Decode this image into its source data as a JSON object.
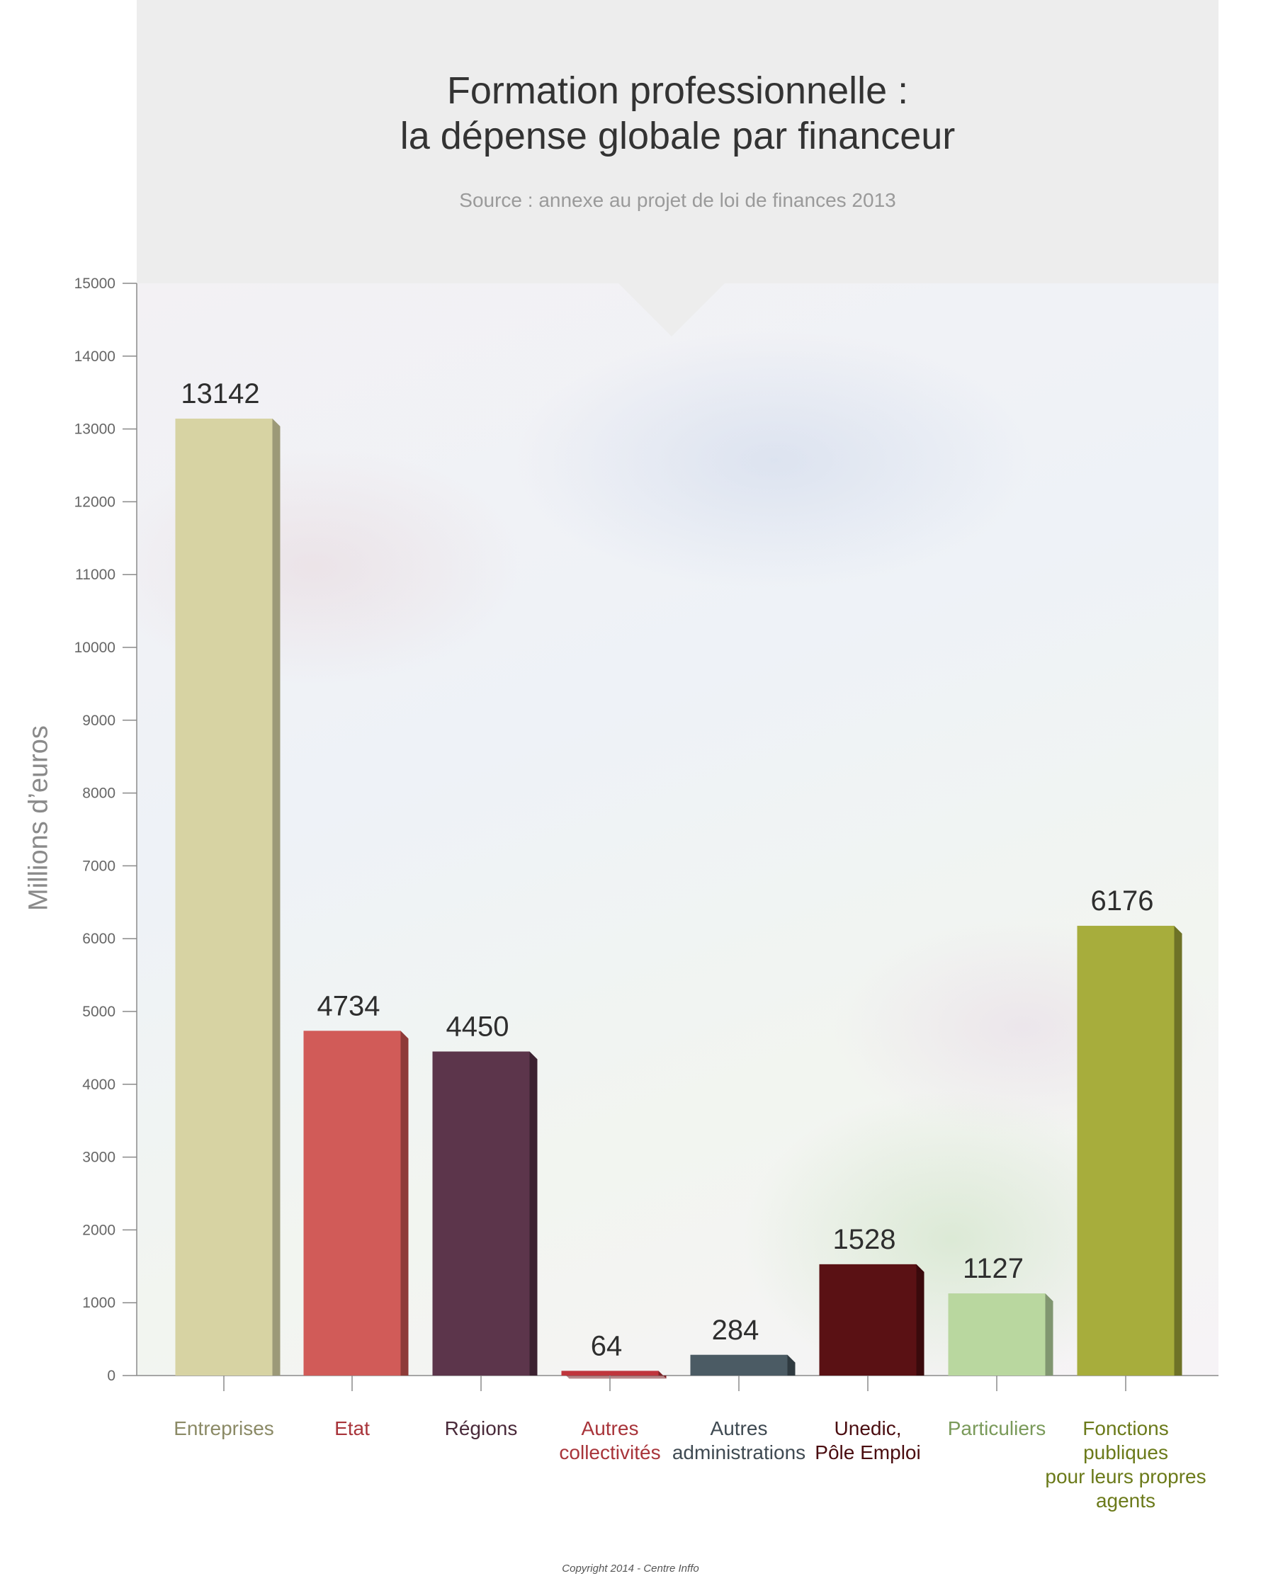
{
  "title_lines": [
    "Formation professionnelle :",
    "la dépense globale par financeur"
  ],
  "source": "Source : annexe au projet de loi de finances 2013",
  "copyright": "Copyright 2014 - Centre Inffo",
  "chart_data": {
    "type": "bar",
    "title": "Formation professionnelle : la dépense globale par financeur",
    "subtitle": "Source : annexe au projet de loi de finances 2013",
    "ylabel": "Millions d’euros",
    "xlabel": "",
    "ylim": [
      0,
      15000
    ],
    "yticks": [
      0,
      1000,
      2000,
      3000,
      4000,
      5000,
      6000,
      7000,
      8000,
      9000,
      10000,
      11000,
      12000,
      13000,
      14000,
      15000
    ],
    "grid": false,
    "categories": [
      [
        "Entreprises"
      ],
      [
        "Etat"
      ],
      [
        "Régions"
      ],
      [
        "Autres",
        "collectivités"
      ],
      [
        "Autres",
        "administrations"
      ],
      [
        "Unedic,",
        "Pôle Emploi"
      ],
      [
        "Particuliers"
      ],
      [
        "Fonctions",
        "publiques",
        "pour leurs propres",
        "agents"
      ]
    ],
    "values": [
      13142,
      4734,
      4450,
      64,
      284,
      1528,
      1127,
      6176
    ],
    "bar_colors": [
      "#d7d3a3",
      "#d15b58",
      "#5c354b",
      "#c0353c",
      "#4b5b64",
      "#5a1114",
      "#b9d79f",
      "#a7ad3c"
    ],
    "bar_side_colors": [
      "#9c9978",
      "#8e3b39",
      "#3c2231",
      "#7d2227",
      "#2f3a40",
      "#3a0a0c",
      "#809670",
      "#6e7227"
    ],
    "label_colors": [
      "#8b8a66",
      "#a8343a",
      "#4a2a3a",
      "#a8343a",
      "#3f4a52",
      "#4a0d10",
      "#7a9a5a",
      "#6b7a1a"
    ]
  }
}
